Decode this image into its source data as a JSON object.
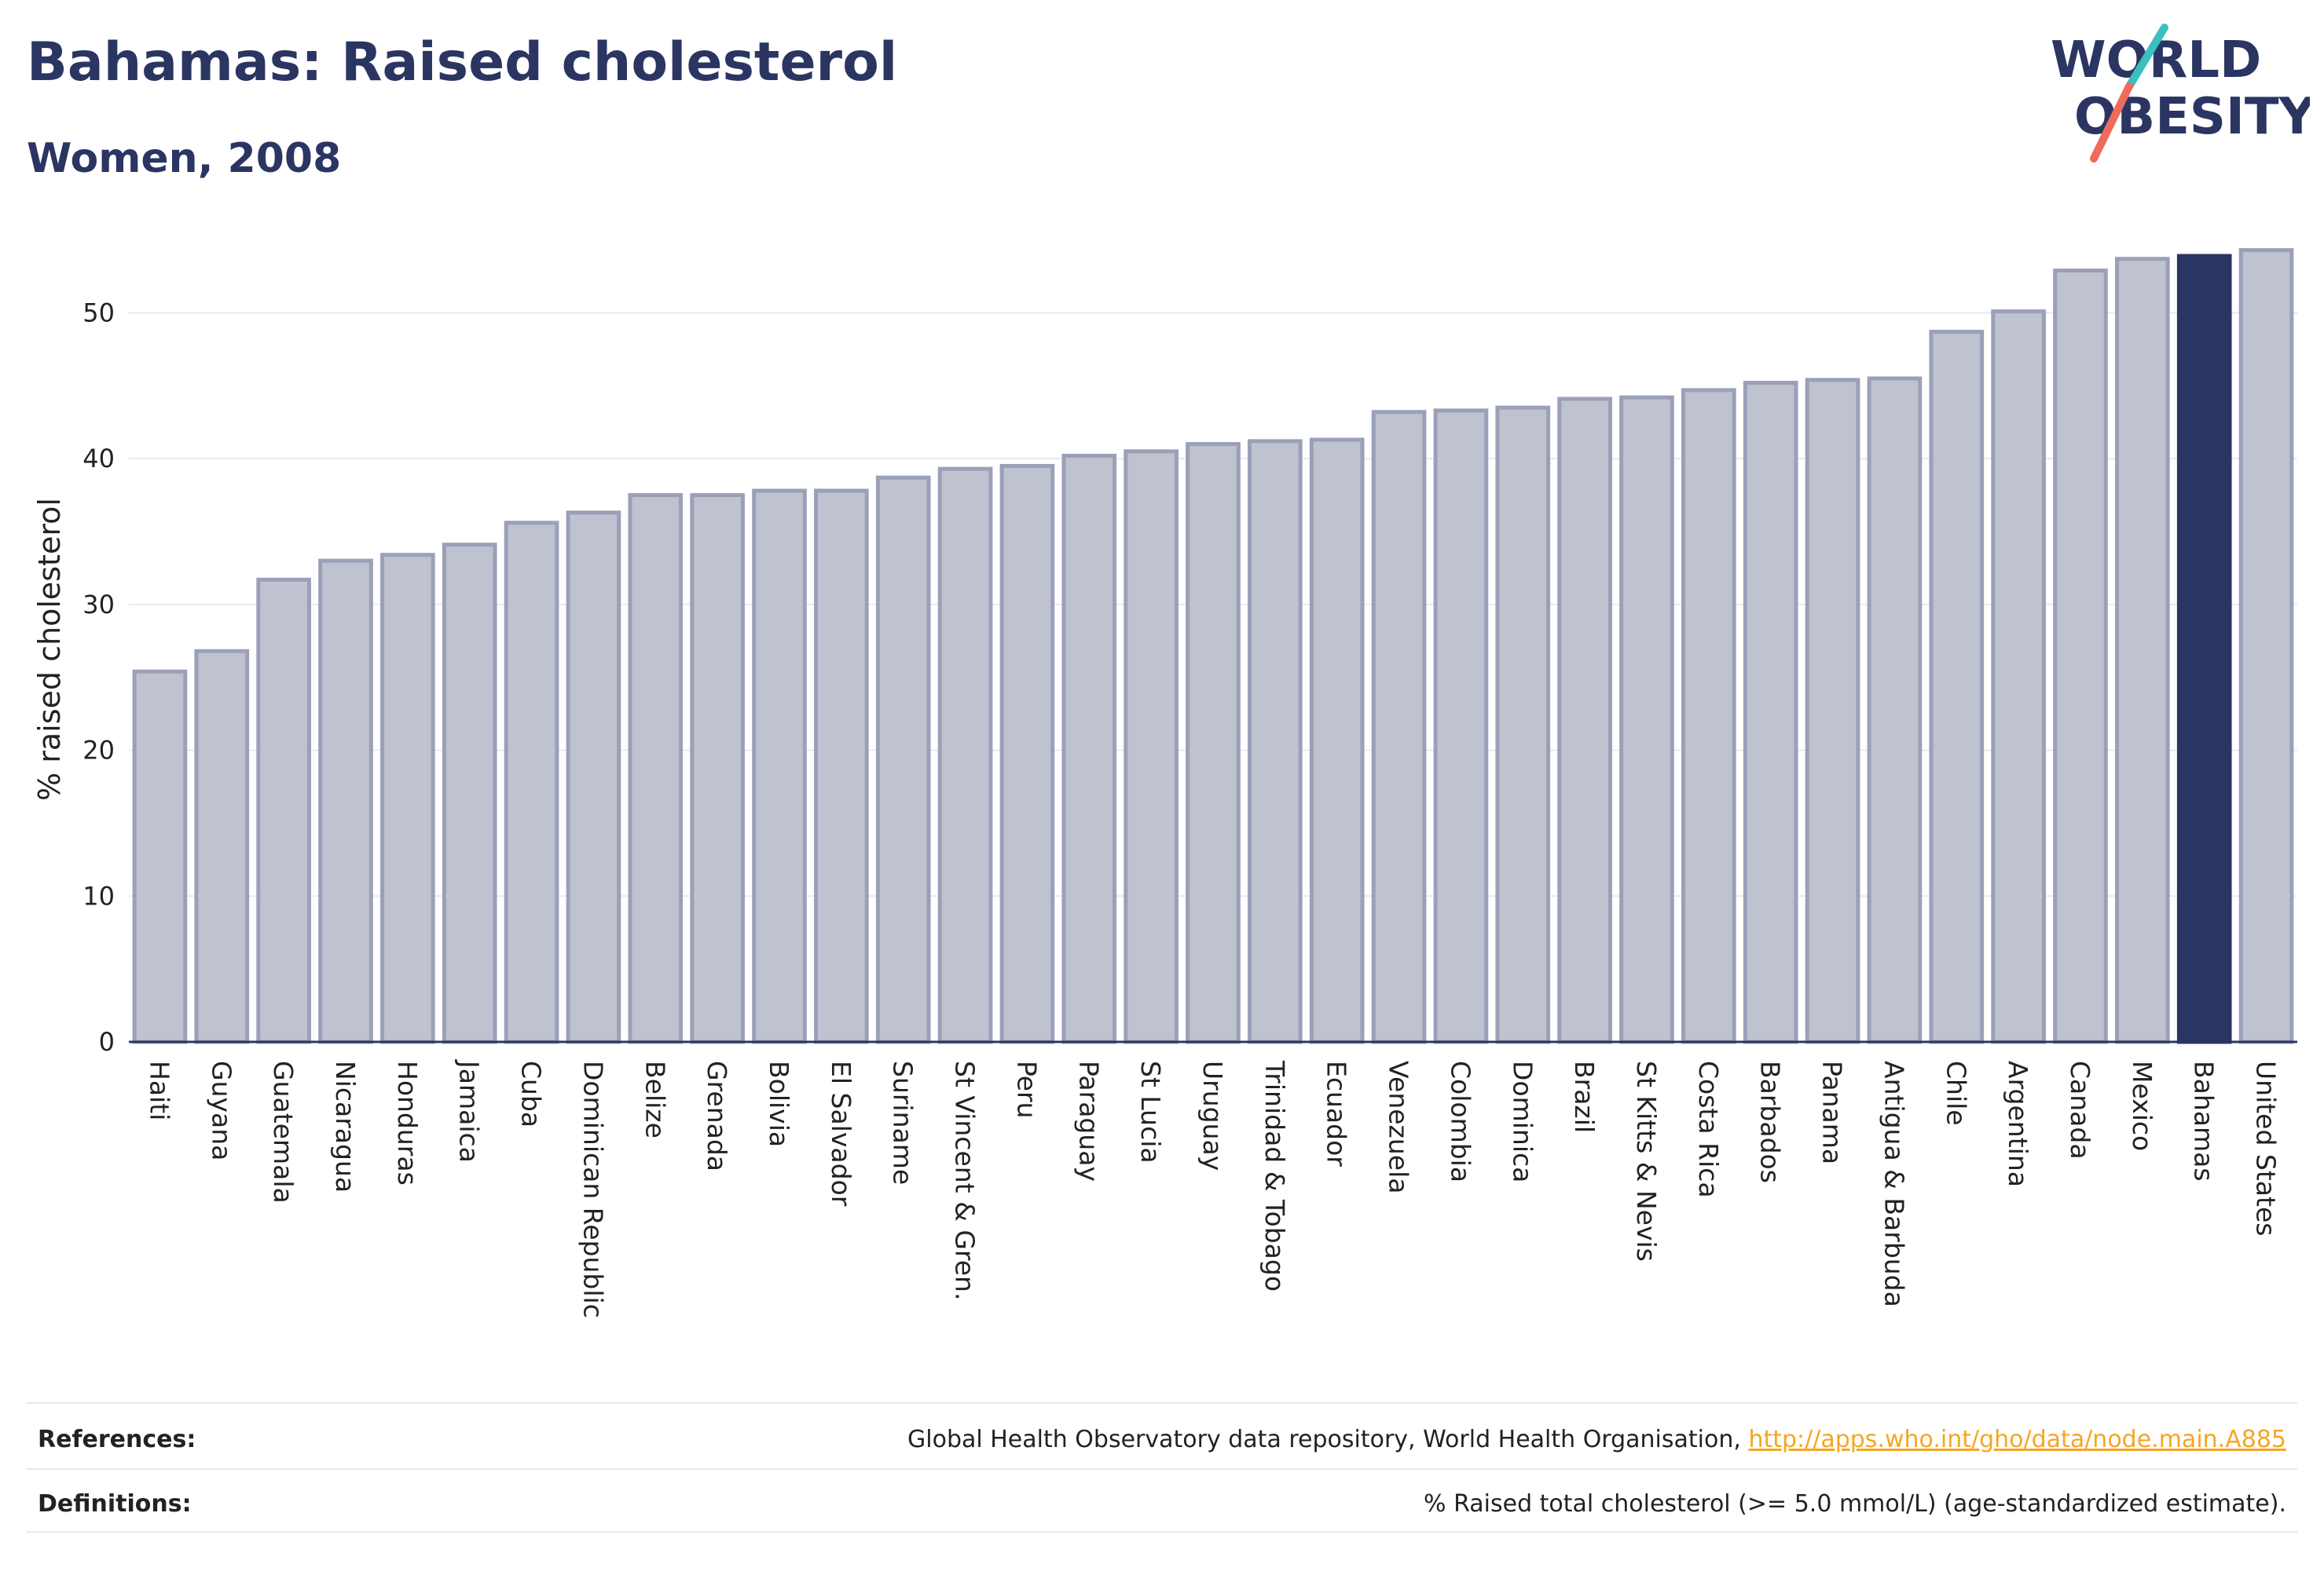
{
  "header": {
    "title": "Bahamas: Raised cholesterol",
    "subtitle": "Women, 2008",
    "logo_line1": "WORLD",
    "logo_line2": "OBESITY"
  },
  "footer": {
    "references_label": "References:",
    "references_text": "Global Health Observatory data repository, World Health Organisation, ",
    "references_link": "http://apps.who.int/gho/data/node.main.A885",
    "definitions_label": "Definitions:",
    "definitions_text": "% Raised total cholesterol (>= 5.0 mmol/L) (age-standardized estimate)."
  },
  "colors": {
    "bar": "#bfc2cf",
    "bar_stroke": "#9aa0b8",
    "highlight": "#2b3562",
    "logo_teal": "#3bbfbf",
    "logo_coral": "#ef6b5b",
    "link": "#f5a623"
  },
  "chart_data": {
    "type": "bar",
    "ylabel": "% raised cholesterol",
    "xlabel": "",
    "ylim": [
      0,
      56
    ],
    "yticks": [
      0,
      10,
      20,
      30,
      40,
      50
    ],
    "grid": true,
    "highlight": "Bahamas",
    "categories": [
      "Haiti",
      "Guyana",
      "Guatemala",
      "Nicaragua",
      "Honduras",
      "Jamaica",
      "Cuba",
      "Dominican Republic",
      "Belize",
      "Grenada",
      "Bolivia",
      "El Salvador",
      "Suriname",
      "St Vincent & Gren.",
      "Peru",
      "Paraguay",
      "St Lucia",
      "Uruguay",
      "Trinidad & Tobago",
      "Ecuador",
      "Venezuela",
      "Colombia",
      "Dominica",
      "Brazil",
      "St Kitts & Nevis",
      "Costa Rica",
      "Barbados",
      "Panama",
      "Antigua & Barbuda",
      "Chile",
      "Argentina",
      "Canada",
      "Mexico",
      "Bahamas",
      "United States"
    ],
    "values": [
      25.4,
      26.8,
      31.7,
      33.0,
      33.4,
      34.1,
      35.6,
      36.3,
      37.5,
      37.5,
      37.8,
      37.8,
      38.7,
      39.3,
      39.5,
      40.2,
      40.5,
      41.0,
      41.2,
      41.3,
      43.2,
      43.3,
      43.5,
      44.1,
      44.2,
      44.7,
      45.2,
      45.4,
      45.5,
      48.7,
      50.1,
      52.9,
      53.7,
      53.9,
      54.3
    ]
  }
}
